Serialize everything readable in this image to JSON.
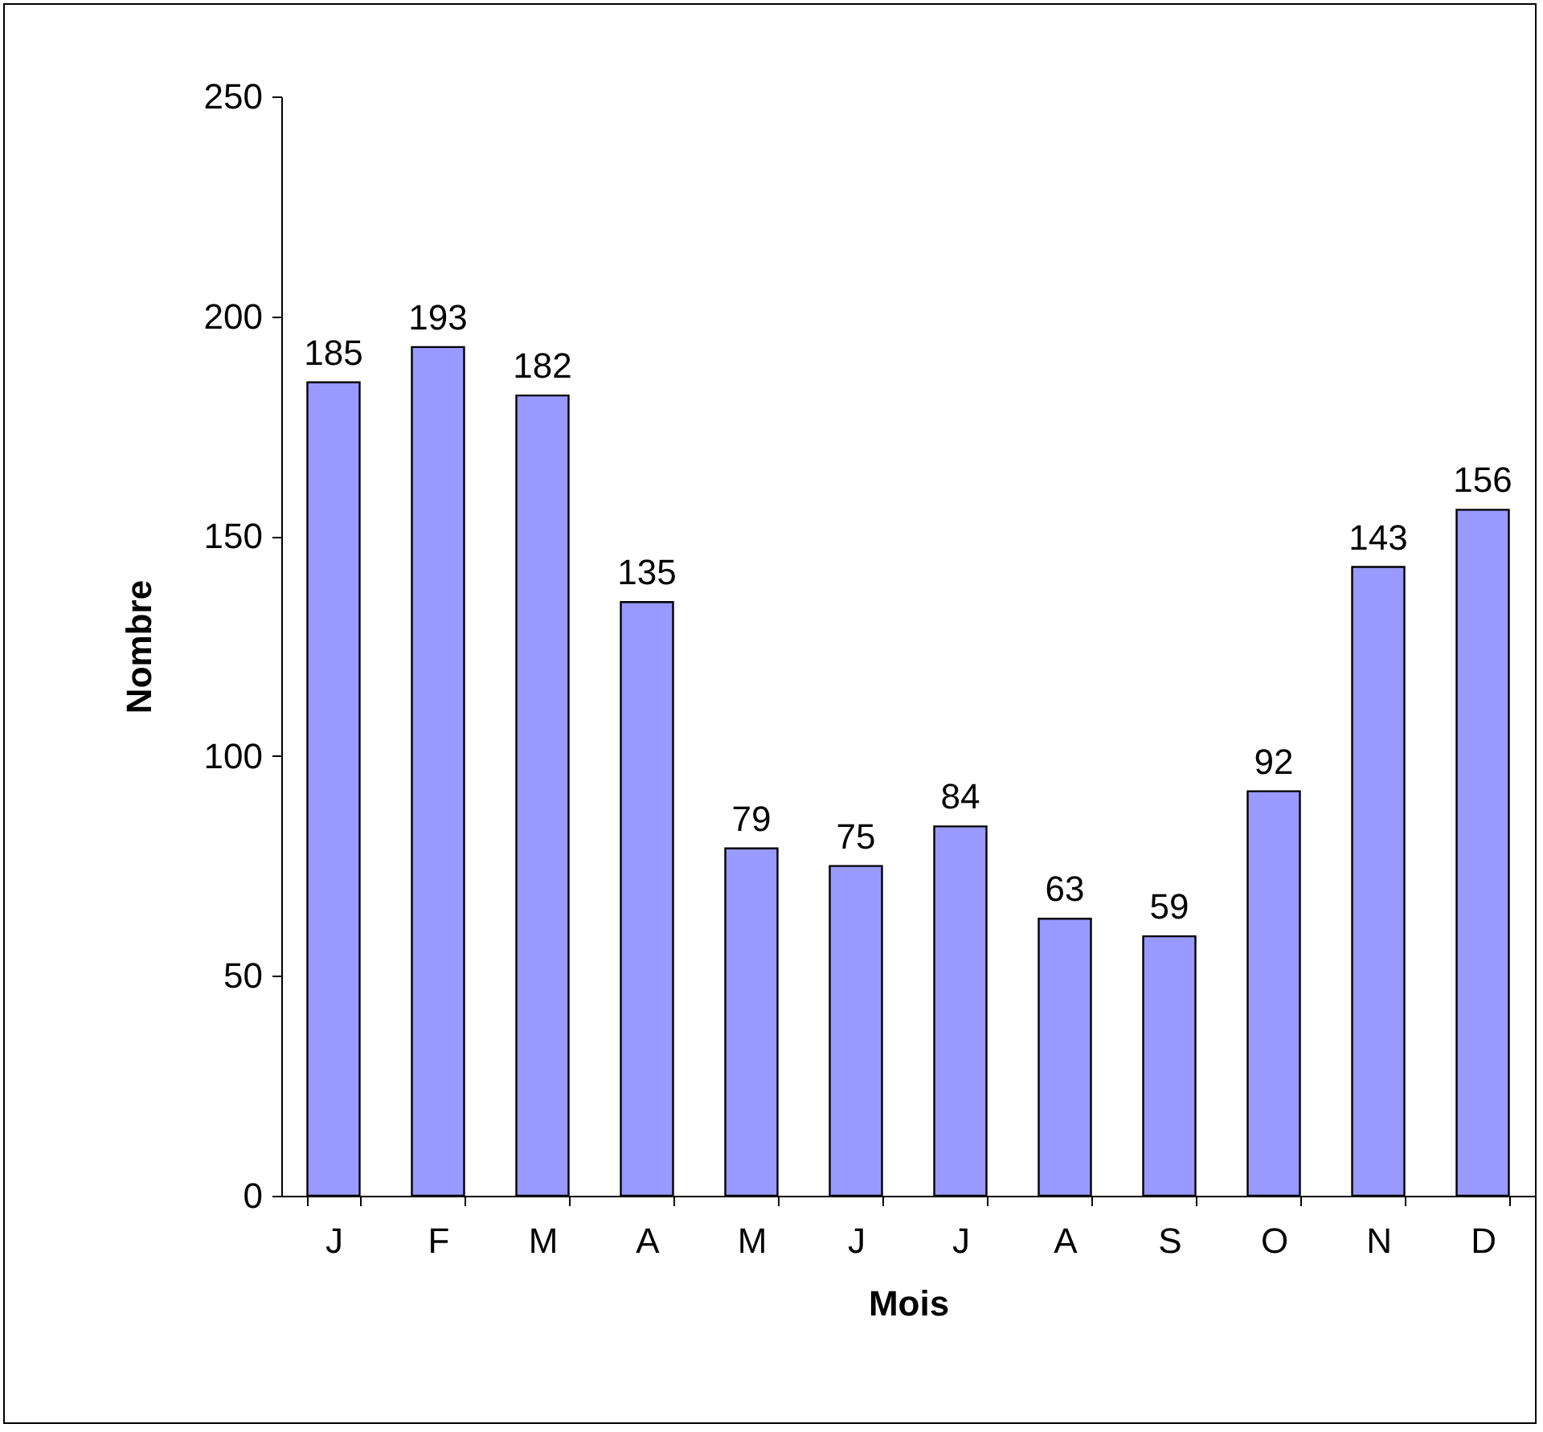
{
  "chart_data": {
    "type": "bar",
    "xlabel": "Mois",
    "ylabel": "Nombre",
    "categories": [
      "J",
      "F",
      "M",
      "A",
      "M",
      "J",
      "J",
      "A",
      "S",
      "O",
      "N",
      "D"
    ],
    "values": [
      185,
      193,
      182,
      135,
      79,
      75,
      84,
      63,
      59,
      92,
      143,
      156
    ],
    "color": "#9999ff",
    "ylim": [
      0,
      250
    ],
    "yticks": [
      0,
      50,
      100,
      150,
      200,
      250
    ],
    "data_labels": true
  }
}
